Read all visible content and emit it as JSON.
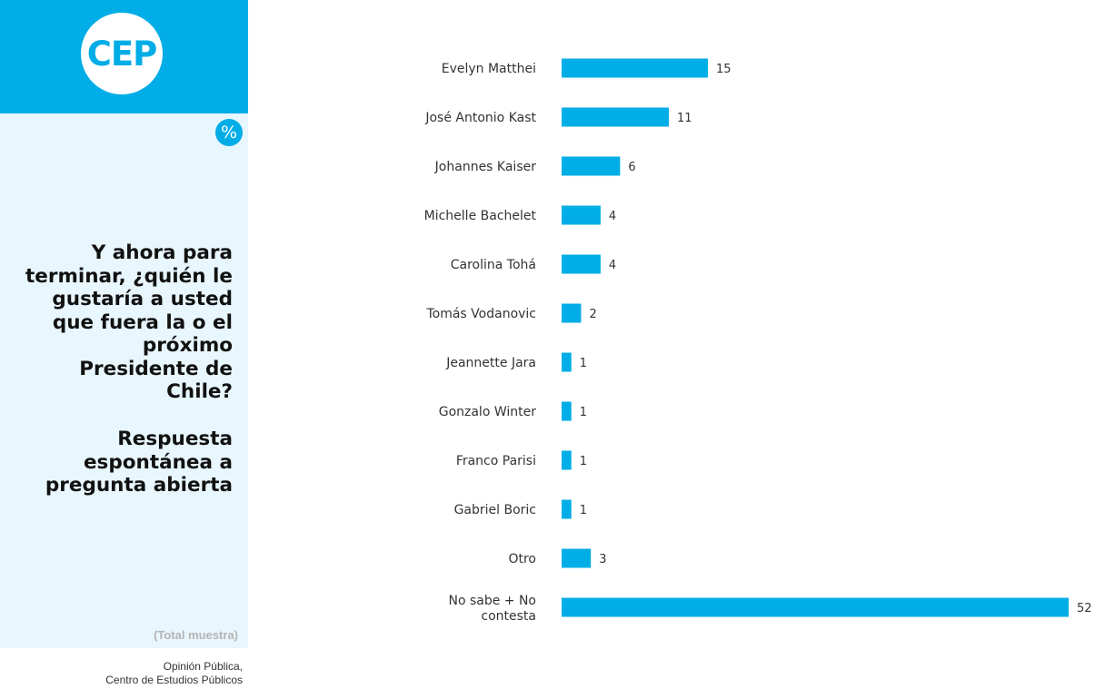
{
  "logo": {
    "text": "CEP"
  },
  "badge": {
    "symbol": "%"
  },
  "question": "Y ahora para terminar, ¿quién le gustaría a usted que fuera la o el próximo Presidente de Chile?",
  "subtitle": "Respuesta espontánea a pregunta abierta",
  "sample_note": "(Total muestra)",
  "source_line1": "Opinión Pública,",
  "source_line2": "Centro de Estudios Públicos",
  "colors": {
    "brand": "#00ade6",
    "panel": "#e8f6fd"
  },
  "chart_data": {
    "type": "bar",
    "orientation": "horizontal",
    "categories": [
      "Evelyn Matthei",
      "José Antonio Kast",
      "Johannes Kaiser",
      "Michelle Bachelet",
      "Carolina Tohá",
      "Tomás Vodanovic",
      "Jeannette Jara",
      "Gonzalo Winter",
      "Franco Parisi",
      "Gabriel Boric",
      "Otro",
      "No sabe + No contesta"
    ],
    "values": [
      15,
      11,
      6,
      4,
      4,
      2,
      1,
      1,
      1,
      1,
      3,
      52
    ],
    "unit": "%",
    "bar_color": "#00ade6",
    "grid": false,
    "xlim": [
      0,
      52
    ]
  }
}
